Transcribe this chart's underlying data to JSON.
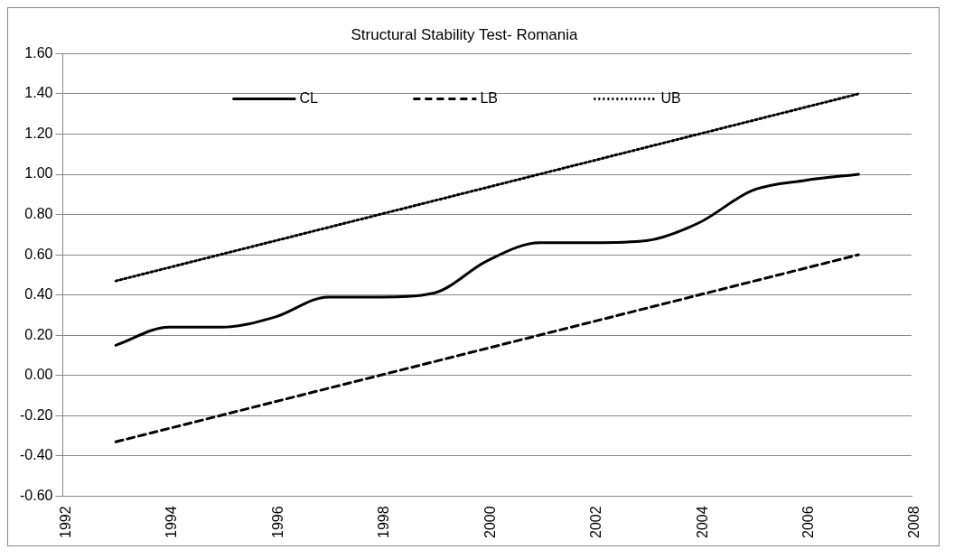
{
  "chart_data": {
    "type": "line",
    "title": "Structural Stability Test- Romania",
    "xlim": [
      1992,
      2008
    ],
    "xticks": [
      1992,
      1994,
      1996,
      1998,
      2000,
      2002,
      2004,
      2006,
      2008
    ],
    "ylim": [
      -0.6,
      1.6
    ],
    "yticks": [
      {
        "value": -0.6,
        "label": "-0.60"
      },
      {
        "value": -0.4,
        "label": "-0.40"
      },
      {
        "value": -0.2,
        "label": "-0.20"
      },
      {
        "value": 0,
        "label": "0.00"
      },
      {
        "value": 0.2,
        "label": "0.20"
      },
      {
        "value": 0.4,
        "label": "0.40"
      },
      {
        "value": 0.6,
        "label": "0.60"
      },
      {
        "value": 0.8,
        "label": "0.80"
      },
      {
        "value": 1.0,
        "label": "1.00"
      },
      {
        "value": 1.2,
        "label": "1.20"
      },
      {
        "value": 1.4,
        "label": "1.40"
      },
      {
        "value": 1.6,
        "label": "1.60"
      }
    ],
    "grid": "y",
    "legend": "top",
    "marker": "none",
    "series": [
      {
        "name": "CL",
        "color": "#000000",
        "line_style": "solid",
        "x": [
          1993,
          1994,
          1995,
          1996,
          1997,
          1998,
          1999,
          2000,
          2001,
          2002,
          2003,
          2004,
          2005,
          2006,
          2007
        ],
        "values": [
          0.15,
          0.24,
          0.24,
          0.29,
          0.39,
          0.39,
          0.41,
          0.57,
          0.66,
          0.66,
          0.67,
          0.76,
          0.92,
          0.97,
          1.0
        ]
      },
      {
        "name": "LB",
        "color": "#000000",
        "line_style": "dashed",
        "x": [
          1993,
          2007
        ],
        "values": [
          -0.33,
          0.6
        ]
      },
      {
        "name": "UB",
        "color": "#000000",
        "line_style": "dotted",
        "x": [
          1993,
          2007
        ],
        "values": [
          0.47,
          1.4
        ]
      }
    ]
  }
}
